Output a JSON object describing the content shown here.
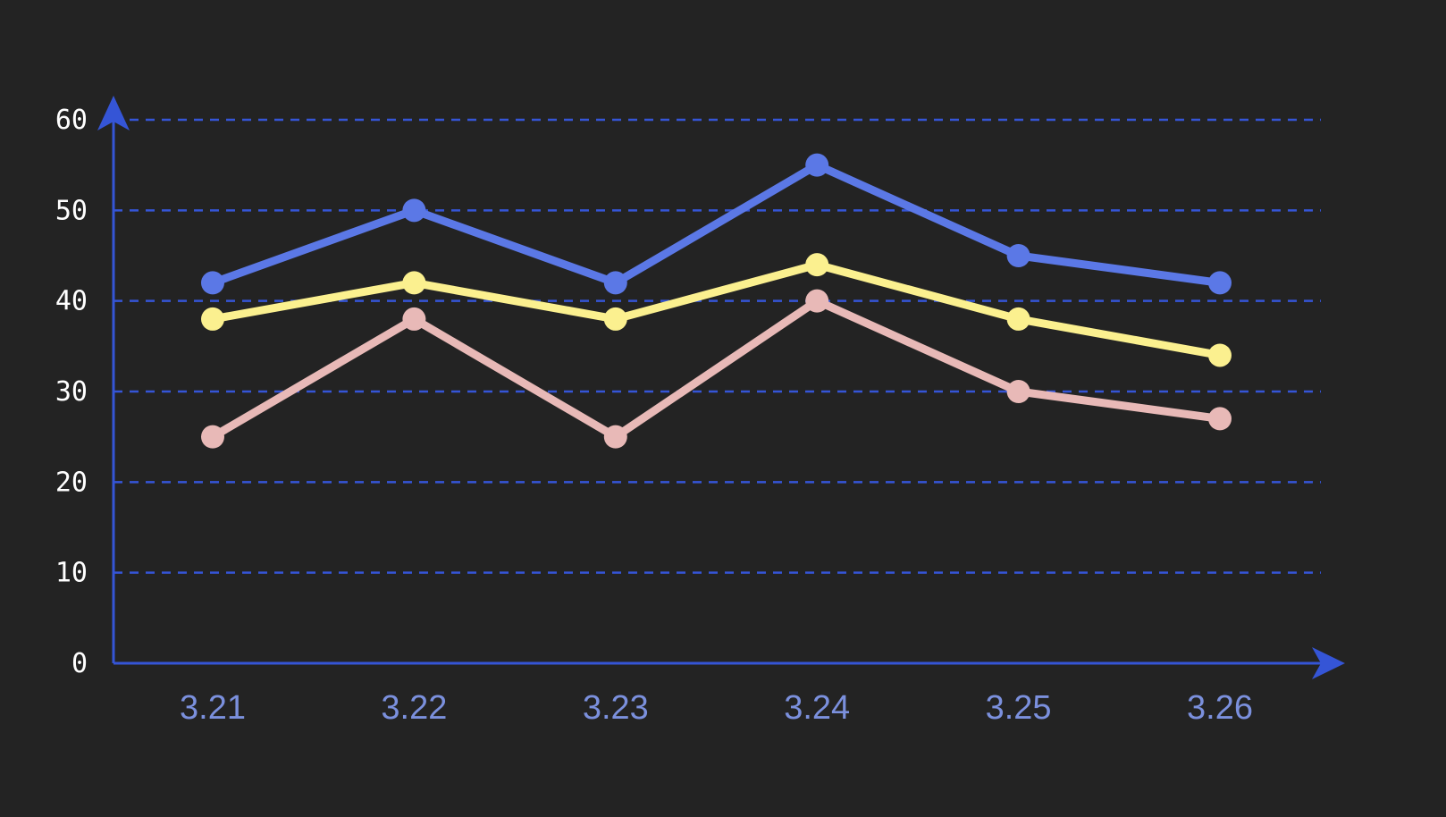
{
  "chart_data": {
    "type": "line",
    "categories": [
      "3.21",
      "3.22",
      "3.23",
      "3.24",
      "3.25",
      "3.26"
    ],
    "y_ticks": [
      "0",
      "10",
      "20",
      "30",
      "40",
      "50",
      "60"
    ],
    "ylim": [
      0,
      60
    ],
    "grid": true,
    "grid_style": "dashed",
    "axis_color": "#3555d6",
    "series": [
      {
        "color": "#5b78e6",
        "values": [
          42,
          50,
          42,
          55,
          45,
          42
        ]
      },
      {
        "color": "#fbf08f",
        "values": [
          38,
          42,
          38,
          44,
          38,
          34
        ]
      },
      {
        "color": "#e8b9b7",
        "values": [
          25,
          38,
          25,
          40,
          30,
          27
        ]
      }
    ]
  }
}
